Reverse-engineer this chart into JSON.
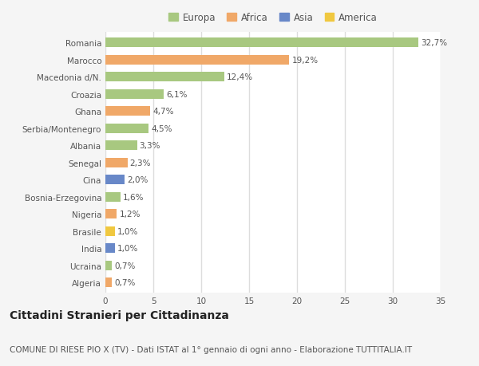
{
  "categories": [
    "Algeria",
    "Ucraina",
    "India",
    "Brasile",
    "Nigeria",
    "Bosnia-Erzegovina",
    "Cina",
    "Senegal",
    "Albania",
    "Serbia/Montenegro",
    "Ghana",
    "Croazia",
    "Macedonia d/N.",
    "Marocco",
    "Romania"
  ],
  "values": [
    0.7,
    0.7,
    1.0,
    1.0,
    1.2,
    1.6,
    2.0,
    2.3,
    3.3,
    4.5,
    4.7,
    6.1,
    12.4,
    19.2,
    32.7
  ],
  "labels": [
    "0,7%",
    "0,7%",
    "1,0%",
    "1,0%",
    "1,2%",
    "1,6%",
    "2,0%",
    "2,3%",
    "3,3%",
    "4,5%",
    "4,7%",
    "6,1%",
    "12,4%",
    "19,2%",
    "32,7%"
  ],
  "colors": [
    "#f0a868",
    "#a8c880",
    "#6888c8",
    "#f0c840",
    "#f0a868",
    "#a8c880",
    "#6888c8",
    "#f0a868",
    "#a8c880",
    "#a8c880",
    "#f0a868",
    "#a8c880",
    "#a8c880",
    "#f0a868",
    "#a8c880"
  ],
  "legend_labels": [
    "Europa",
    "Africa",
    "Asia",
    "America"
  ],
  "legend_colors": [
    "#a8c880",
    "#f0a868",
    "#6888c8",
    "#f0c840"
  ],
  "title": "Cittadini Stranieri per Cittadinanza",
  "subtitle": "COMUNE DI RIESE PIO X (TV) - Dati ISTAT al 1° gennaio di ogni anno - Elaborazione TUTTITALIA.IT",
  "xlim": [
    0,
    35
  ],
  "xticks": [
    0,
    5,
    10,
    15,
    20,
    25,
    30,
    35
  ],
  "background_color": "#f5f5f5",
  "bar_background": "#ffffff",
  "grid_color": "#dddddd",
  "title_fontsize": 10,
  "subtitle_fontsize": 7.5,
  "label_fontsize": 7.5,
  "tick_fontsize": 7.5,
  "legend_fontsize": 8.5
}
